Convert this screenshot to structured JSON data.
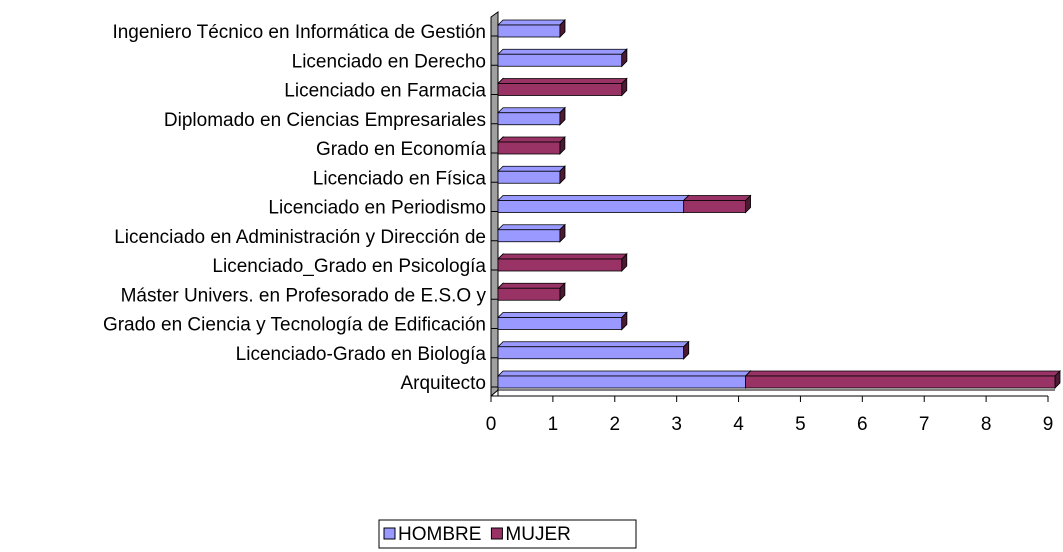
{
  "chart_data": {
    "type": "bar",
    "orientation": "horizontal",
    "stacked": true,
    "categories": [
      "Ingeniero Técnico en Informática de Gestión",
      "Licenciado en Derecho",
      "Licenciado en Farmacia",
      "Diplomado en Ciencias Empresariales",
      "Grado en Economía",
      "Licenciado en Física",
      "Licenciado en Periodismo",
      "Licenciado en Administración y Dirección de",
      "Licenciado_Grado en Psicología",
      "Máster Univers. en Profesorado de E.S.O y",
      "Grado en Ciencia y Tecnología de Edificación",
      "Licenciado-Grado en Biología",
      "Arquitecto"
    ],
    "series": [
      {
        "name": "HOMBRE",
        "color": "#9999ff",
        "values": [
          1,
          2,
          0,
          1,
          0,
          1,
          3,
          1,
          0,
          0,
          2,
          3,
          4
        ]
      },
      {
        "name": "MUJER",
        "color": "#993366",
        "values": [
          0,
          0,
          2,
          0,
          1,
          0,
          1,
          0,
          2,
          1,
          0,
          0,
          5
        ]
      }
    ],
    "xlim": [
      0,
      9
    ],
    "xticks": [
      0,
      1,
      2,
      3,
      4,
      5,
      6,
      7,
      8,
      9
    ],
    "legend": "bottom"
  }
}
